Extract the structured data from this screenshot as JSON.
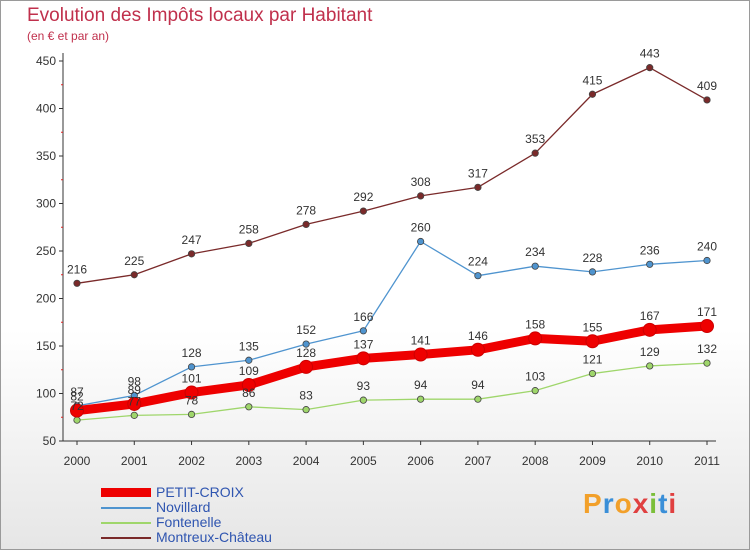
{
  "title": "Evolution des Impôts locaux par Habitant",
  "subtitle": "(en € et par an)",
  "brand": "Proxiti",
  "brand_colors": [
    "#f2a02a",
    "#3a8fd8",
    "#f2a02a",
    "#e04040",
    "#7bbf3a",
    "#3a8fd8",
    "#e04040"
  ],
  "chart_data": {
    "type": "line",
    "x": [
      "2000",
      "2001",
      "2002",
      "2003",
      "2004",
      "2005",
      "2006",
      "2007",
      "2008",
      "2009",
      "2010",
      "2011"
    ],
    "ylim": [
      50,
      450
    ],
    "yticks": [
      50,
      100,
      150,
      200,
      250,
      300,
      350,
      400,
      450
    ],
    "grid": false,
    "legend": "bottom-left",
    "series": [
      {
        "name": "Montreux-Château",
        "color": "#7a2a2a",
        "values": [
          216,
          225,
          247,
          258,
          278,
          292,
          308,
          317,
          353,
          415,
          443,
          409
        ]
      },
      {
        "name": "Novillard",
        "color": "#4f94cf",
        "values": [
          87,
          98,
          128,
          135,
          152,
          166,
          260,
          224,
          234,
          228,
          236,
          240
        ]
      },
      {
        "name": "Fontenelle",
        "color": "#9fd66b",
        "values": [
          72,
          77,
          78,
          86,
          83,
          93,
          94,
          94,
          103,
          121,
          129,
          132
        ]
      },
      {
        "name": "PETIT-CROIX",
        "color": "#ee0000",
        "values": [
          82,
          89,
          101,
          109,
          128,
          137,
          141,
          146,
          158,
          155,
          167,
          171
        ]
      }
    ]
  },
  "legend_items": [
    {
      "label": "PETIT-CROIX",
      "color": "#ee0000",
      "thick": true
    },
    {
      "label": "Novillard",
      "color": "#4f94cf",
      "thick": false
    },
    {
      "label": "Fontenelle",
      "color": "#9fd66b",
      "thick": false
    },
    {
      "label": "Montreux-Château",
      "color": "#7a2a2a",
      "thick": false
    }
  ]
}
